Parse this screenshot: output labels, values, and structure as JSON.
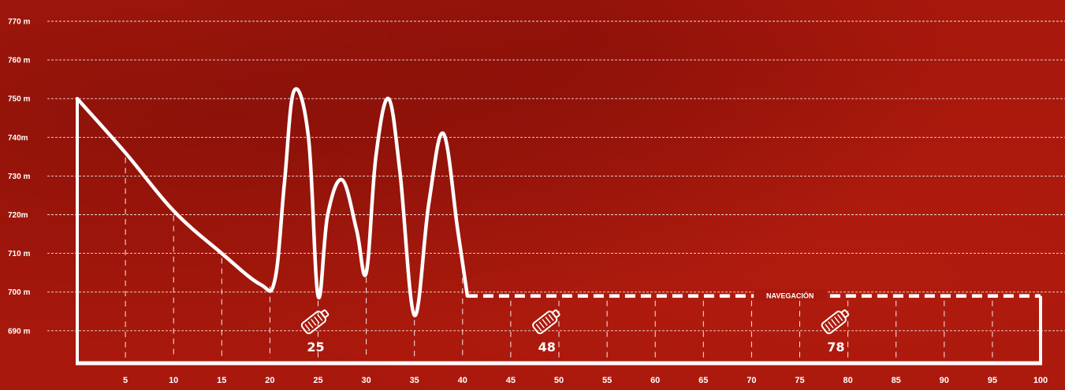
{
  "colors": {
    "background": "#a8180c",
    "line": "#ffffff",
    "grid": "#ffffff"
  },
  "chart_data": {
    "type": "line",
    "title": "",
    "xlabel": "",
    "ylabel": "",
    "xlim": [
      0,
      100
    ],
    "ylim": [
      685,
      775
    ],
    "grid": "horizontal-dashed",
    "y_ticks": [
      {
        "value": 770,
        "label": "770 m"
      },
      {
        "value": 760,
        "label": "760 m"
      },
      {
        "value": 750,
        "label": "750 m"
      },
      {
        "value": 740,
        "label": "740m"
      },
      {
        "value": 730,
        "label": "730 m"
      },
      {
        "value": 720,
        "label": "720m"
      },
      {
        "value": 710,
        "label": "710 m"
      },
      {
        "value": 700,
        "label": "700 m"
      },
      {
        "value": 690,
        "label": "690 m"
      }
    ],
    "x_ticks": [
      5,
      10,
      15,
      20,
      25,
      30,
      35,
      40,
      45,
      50,
      55,
      60,
      65,
      70,
      75,
      80,
      85,
      90,
      95,
      100
    ],
    "series": [
      {
        "style": "solid",
        "x": [
          0,
          5,
          10,
          15,
          19,
          20.5,
          21.5,
          22.5,
          24,
          25,
          26,
          27.5,
          29,
          30,
          31,
          32.3,
          33.5,
          35,
          36.5,
          38,
          39.5,
          40.5
        ],
        "y": [
          750,
          736,
          721,
          710,
          702,
          703,
          728,
          752,
          740,
          699,
          720,
          729,
          716,
          705,
          735,
          750,
          731,
          694,
          723,
          741,
          716,
          699
        ]
      },
      {
        "style": "dashed",
        "label": "NAVEGACIÓN",
        "x": [
          40.5,
          100
        ],
        "y": [
          699,
          699
        ]
      }
    ],
    "annotations": [
      {
        "x": 25,
        "label": "25",
        "icon": "bottle-icon"
      },
      {
        "x": 49,
        "label": "48",
        "icon": "bottle-icon"
      },
      {
        "x": 79,
        "label": "78",
        "icon": "bottle-icon"
      }
    ]
  }
}
